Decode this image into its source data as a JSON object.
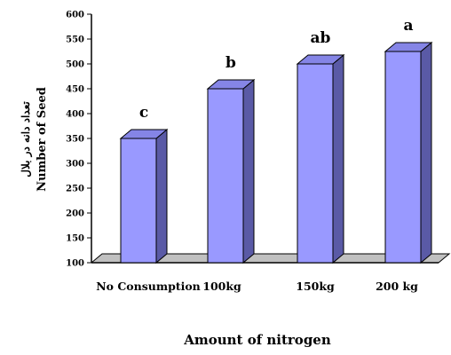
{
  "chart_data": {
    "type": "bar",
    "categories": [
      "No Consumption",
      "100kg",
      "150kg",
      "200 kg"
    ],
    "values": [
      350,
      450,
      500,
      525
    ],
    "significance_letters": [
      "c",
      "b",
      "ab",
      "a"
    ],
    "yticks": [
      100,
      150,
      200,
      250,
      300,
      350,
      400,
      450,
      500,
      550,
      600
    ],
    "ylim": [
      100,
      600
    ],
    "xlabel": "Amount of nitrogen",
    "ylabel": "Number of Seed",
    "ylabel_secondary": "تعداد دانه در بلال",
    "grid": false,
    "legend": "none",
    "bar_front_color": "#9999ff",
    "bar_side_color": "#5a5aa6",
    "bar_top_color": "#8585e6",
    "floor_color": "#c0c0c0"
  }
}
